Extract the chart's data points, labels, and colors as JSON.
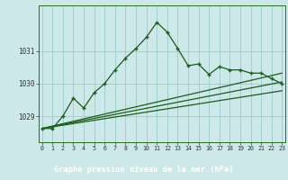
{
  "title": "Graphe pression niveau de la mer (hPa)",
  "bg_color": "#cce8e8",
  "plot_bg_color": "#cce8e8",
  "bottom_bar_color": "#2d6b2d",
  "line_color": "#1a5c1a",
  "grid_color": "#99cccc",
  "x_labels": [
    "0",
    "1",
    "2",
    "3",
    "4",
    "5",
    "6",
    "7",
    "8",
    "9",
    "10",
    "11",
    "12",
    "13",
    "14",
    "15",
    "16",
    "17",
    "18",
    "19",
    "20",
    "21",
    "22",
    "23"
  ],
  "y_ticks": [
    1029,
    1030,
    1031
  ],
  "ylim": [
    1028.2,
    1032.4
  ],
  "xlim": [
    -0.3,
    23.3
  ],
  "main_x": [
    0,
    1,
    2,
    3,
    4,
    5,
    6,
    7,
    8,
    9,
    10,
    11,
    12,
    13,
    14,
    15,
    16,
    17,
    18,
    19,
    20,
    21,
    22,
    23
  ],
  "main_y": [
    1028.62,
    1028.62,
    1029.0,
    1029.55,
    1029.25,
    1029.72,
    1030.0,
    1030.42,
    1030.78,
    1031.08,
    1031.42,
    1031.88,
    1031.58,
    1031.08,
    1030.55,
    1030.6,
    1030.28,
    1030.52,
    1030.42,
    1030.42,
    1030.32,
    1030.32,
    1030.15,
    1030.0
  ],
  "trend1_x": [
    0,
    23
  ],
  "trend1_y": [
    1028.62,
    1030.32
  ],
  "trend2_x": [
    0,
    23
  ],
  "trend2_y": [
    1028.62,
    1030.05
  ],
  "trend3_x": [
    0,
    23
  ],
  "trend3_y": [
    1028.62,
    1029.78
  ]
}
